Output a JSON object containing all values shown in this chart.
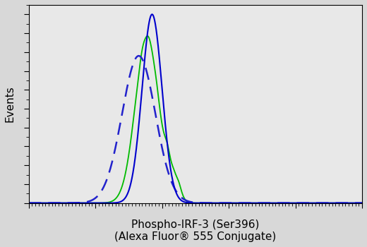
{
  "title": "",
  "xlabel_line1": "Phospho-IRF-3 (Ser396)",
  "xlabel_line2": "(Alexa Fluor® 555 Conjugate)",
  "ylabel": "Events",
  "bg_color": "#d8d8d8",
  "plot_bg_color": "#e8e8e8",
  "xlim": [
    0,
    1000
  ],
  "ylim": [
    0,
    1.05
  ],
  "curves": {
    "blue_solid": {
      "color": "#0000cc",
      "linestyle": "solid",
      "linewidth": 1.5,
      "mu": 370,
      "sigma": 30,
      "amplitude": 1.0
    },
    "blue_dashed": {
      "color": "#2222cc",
      "linestyle": "dashed",
      "linewidth": 1.8,
      "mu": 330,
      "sigma": 50,
      "amplitude": 0.78
    },
    "green_solid": {
      "color": "#00bb00",
      "linestyle": "solid",
      "linewidth": 1.3,
      "mu": 355,
      "sigma": 35,
      "amplitude": 0.88,
      "secondary_mu": 430,
      "secondary_sigma": 18,
      "secondary_amplitude": 0.1
    }
  },
  "xlabel_fontsize": 11,
  "ylabel_fontsize": 11,
  "tick_labelsize": 8
}
